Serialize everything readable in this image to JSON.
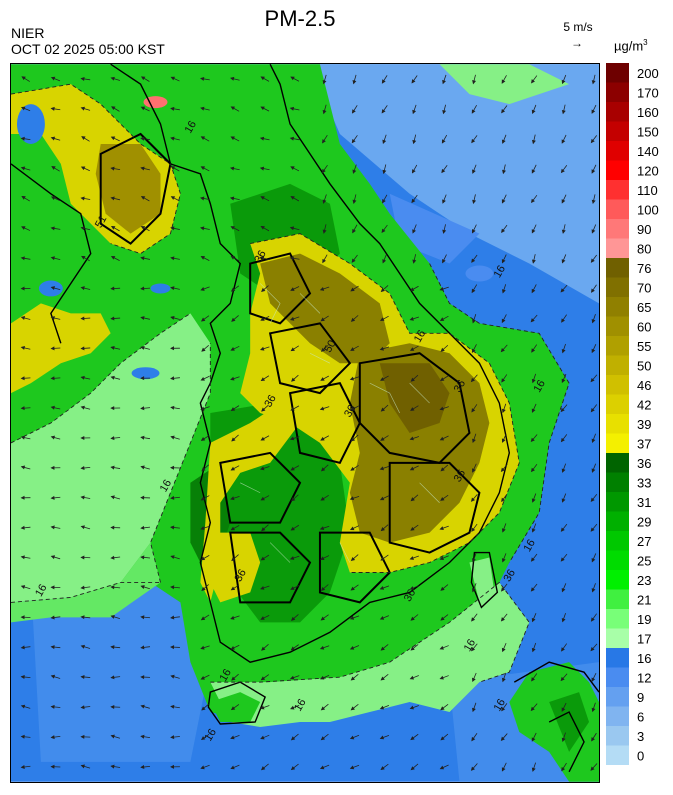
{
  "header": {
    "title": "PM-2.5",
    "org": "NIER",
    "datetime": "OCT 02 2025 05:00 KST",
    "wind_scale_label": "5 m/s",
    "unit_main": "µg/m",
    "unit_sup": "3"
  },
  "legend": {
    "levels": [
      {
        "label": "200",
        "color": "#6e0000"
      },
      {
        "label": "170",
        "color": "#8c0000"
      },
      {
        "label": "160",
        "color": "#a80000"
      },
      {
        "label": "150",
        "color": "#c40000"
      },
      {
        "label": "140",
        "color": "#e00000"
      },
      {
        "label": "120",
        "color": "#ff0000"
      },
      {
        "label": "110",
        "color": "#ff3030"
      },
      {
        "label": "100",
        "color": "#ff5a5a"
      },
      {
        "label": "90",
        "color": "#ff7878"
      },
      {
        "label": "80",
        "color": "#ff9696"
      },
      {
        "label": "76",
        "color": "#706000"
      },
      {
        "label": "70",
        "color": "#807000"
      },
      {
        "label": "65",
        "color": "#908000"
      },
      {
        "label": "60",
        "color": "#a09000"
      },
      {
        "label": "55",
        "color": "#b0a000"
      },
      {
        "label": "50",
        "color": "#c0b000"
      },
      {
        "label": "46",
        "color": "#d0c000"
      },
      {
        "label": "42",
        "color": "#dcd000"
      },
      {
        "label": "39",
        "color": "#e8e000"
      },
      {
        "label": "37",
        "color": "#f4f000"
      },
      {
        "label": "36",
        "color": "#006400"
      },
      {
        "label": "33",
        "color": "#008000"
      },
      {
        "label": "31",
        "color": "#009800"
      },
      {
        "label": "29",
        "color": "#00b000"
      },
      {
        "label": "27",
        "color": "#00c800"
      },
      {
        "label": "25",
        "color": "#00dc00"
      },
      {
        "label": "23",
        "color": "#00f000"
      },
      {
        "label": "21",
        "color": "#40f040"
      },
      {
        "label": "19",
        "color": "#78ff78"
      },
      {
        "label": "17",
        "color": "#a8ffa8"
      },
      {
        "label": "16",
        "color": "#2878e6"
      },
      {
        "label": "12",
        "color": "#4a8cf0"
      },
      {
        "label": "9",
        "color": "#64a0f0"
      },
      {
        "label": "6",
        "color": "#80b4f0"
      },
      {
        "label": "3",
        "color": "#9ac8f0"
      },
      {
        "label": "0",
        "color": "#b4dcf5"
      }
    ]
  },
  "map": {
    "contour_labels": [
      "16",
      "36",
      "50",
      "16",
      "16",
      "36",
      "36",
      "36",
      "16",
      "16",
      "16",
      "36",
      "36",
      "16",
      "16",
      "16",
      "36",
      "16",
      "16",
      "16",
      "36",
      "51"
    ],
    "colors": {
      "sea_blue": "#2e7ee8",
      "light_blue": "#6aa8f0",
      "green": "#1ec81e",
      "dark_green": "#0a9a0a",
      "light_green": "#86f086",
      "yellow": "#d8d400",
      "olive": "#8a8000",
      "red": "#ff7070"
    }
  }
}
